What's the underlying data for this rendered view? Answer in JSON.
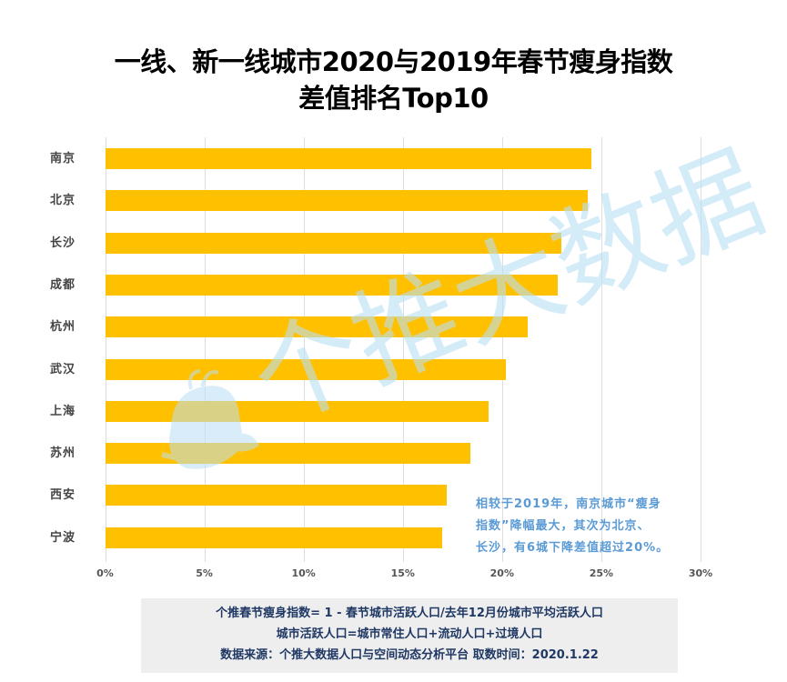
{
  "title": {
    "line1": "一线、新一线城市2020与2019年春节瘦身指数",
    "line2": "差值排名Top10"
  },
  "chart_data": {
    "type": "bar",
    "orientation": "horizontal",
    "title": "一线、新一线城市2020与2019年春节瘦身指数差值排名Top10",
    "categories": [
      "南京",
      "北京",
      "长沙",
      "成都",
      "杭州",
      "武汉",
      "上海",
      "苏州",
      "西安",
      "宁波"
    ],
    "values": [
      24.5,
      24.3,
      23.0,
      22.8,
      21.3,
      20.2,
      19.3,
      18.4,
      17.2,
      17.0
    ],
    "unit": "%",
    "xlabel": "",
    "ylabel": "",
    "xlim": [
      0,
      30
    ],
    "xticks": [
      "0%",
      "5%",
      "10%",
      "15%",
      "20%",
      "25%",
      "30%"
    ],
    "grid": true,
    "legend": null,
    "bar_color": "#FFC000",
    "annotation": "相较于2019年，南京城市“瘦身指数”降幅最大，其次为北京、长沙，有6城下降差值超过20%。"
  },
  "axis": {
    "ticks": [
      "0%",
      "5%",
      "10%",
      "15%",
      "20%",
      "25%",
      "30%"
    ]
  },
  "annotation": {
    "line1": "相较于2019年，南京城市“瘦身",
    "line2": "指数”降幅最大，其次为北京、",
    "line3": "长沙，有6城下降差值超过20%。",
    "color": "#5B9BD5"
  },
  "watermark": {
    "text": "个推大数据",
    "color": "#B9E0F5"
  },
  "footer": {
    "line1": "个推春节瘦身指数= 1 - 春节城市活跃人口/去年12月份城市平均活跃人口",
    "line2": "城市活跃人口=城市常住人口+流动人口+过境人口",
    "line3": "数据来源：个推大数据人口与空间动态分析平台 取数时间：2020.1.22",
    "text_color": "#1F3864",
    "background": "#EEEEEE"
  }
}
